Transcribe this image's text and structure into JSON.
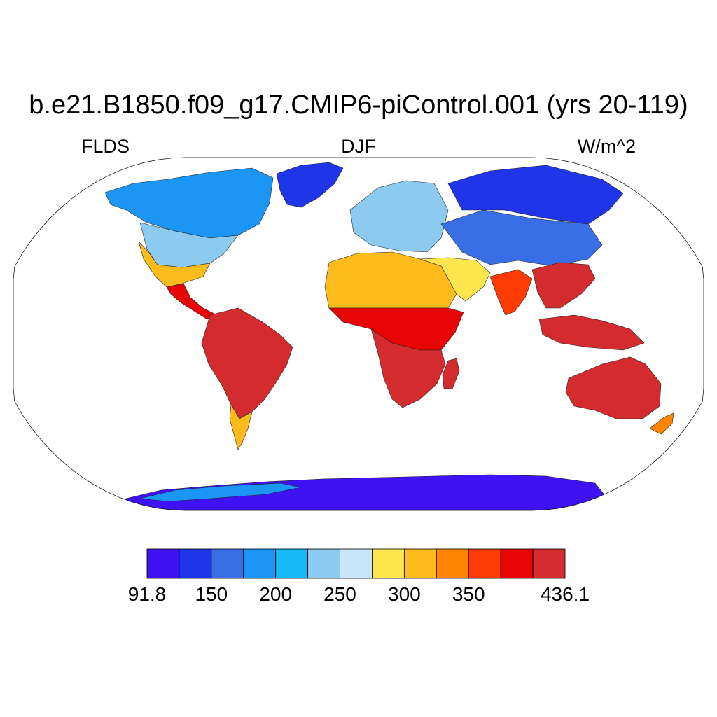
{
  "title": "b.e21.B1850.f09_g17.CMIP6-piControl.001 (yrs 20-119)",
  "subtitle": {
    "left": "FLDS",
    "center": "DJF",
    "right": "W/m^2"
  },
  "projection": "robinson",
  "colorbar": {
    "colors": [
      "#3f12f3",
      "#1f35e8",
      "#3a6ee6",
      "#1c96f4",
      "#15baf7",
      "#8ccaf0",
      "#c8e6f7",
      "#fde64d",
      "#fdbb1c",
      "#fe8502",
      "#fe3b03",
      "#e60404",
      "#d42b2e"
    ],
    "labels": [
      {
        "text": "91.8",
        "boundary": 0
      },
      {
        "text": "150",
        "boundary": 2
      },
      {
        "text": "200",
        "boundary": 4
      },
      {
        "text": "250",
        "boundary": 6
      },
      {
        "text": "300",
        "boundary": 8
      },
      {
        "text": "350",
        "boundary": 10
      },
      {
        "text": "436.1",
        "boundary": 13
      }
    ]
  },
  "regions": [
    {
      "name": "antarctica",
      "color": "#3f12f3"
    },
    {
      "name": "antarctic-coast",
      "color": "#1c96f4"
    },
    {
      "name": "greenland",
      "color": "#1f35e8"
    },
    {
      "name": "north-america-north",
      "color": "#1c96f4"
    },
    {
      "name": "north-america-mid",
      "color": "#8ccaf0"
    },
    {
      "name": "north-america-south",
      "color": "#fdbb1c"
    },
    {
      "name": "central-america",
      "color": "#e60404"
    },
    {
      "name": "south-america",
      "color": "#d42b2e"
    },
    {
      "name": "patagonia",
      "color": "#fdbb1c"
    },
    {
      "name": "africa-north",
      "color": "#fdbb1c"
    },
    {
      "name": "africa-central",
      "color": "#e60404"
    },
    {
      "name": "africa-south",
      "color": "#d42b2e"
    },
    {
      "name": "europe",
      "color": "#8ccaf0"
    },
    {
      "name": "siberia",
      "color": "#1f35e8"
    },
    {
      "name": "central-asia",
      "color": "#3a6ee6"
    },
    {
      "name": "middle-east",
      "color": "#fde64d"
    },
    {
      "name": "india",
      "color": "#fe3b03"
    },
    {
      "name": "southeast-asia",
      "color": "#d42b2e"
    },
    {
      "name": "indonesia",
      "color": "#d42b2e"
    },
    {
      "name": "australia",
      "color": "#d42b2e"
    },
    {
      "name": "new-zealand",
      "color": "#fe8502"
    },
    {
      "name": "madagascar",
      "color": "#d42b2e"
    }
  ]
}
